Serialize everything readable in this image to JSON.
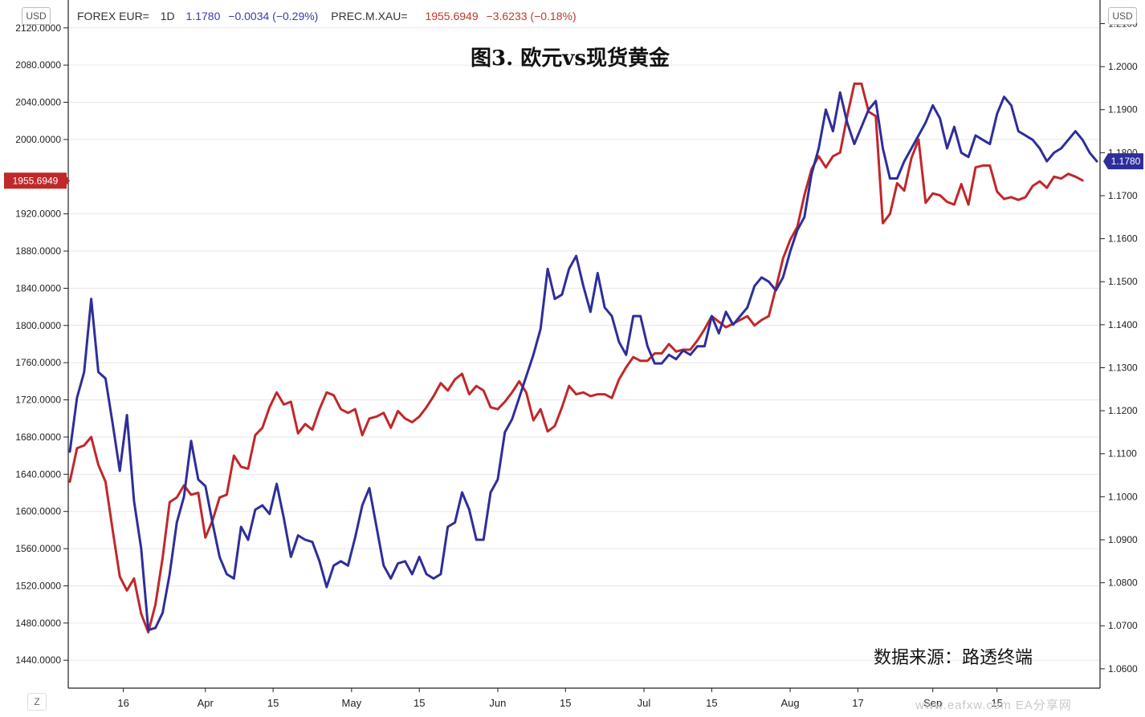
{
  "legend": {
    "symbol1": "FOREX EUR=",
    "interval": "1D",
    "eur_value": "1.1780",
    "eur_change": "−0.0034 (−0.29%)",
    "symbol2": "PREC.M.XAU=",
    "xau_value": "1955.6949",
    "xau_change": "−3.6233 (−0.18%)"
  },
  "title": "图3. 欧元vs现货黄金",
  "source": "数据来源：路透终端",
  "left_currency": "USD",
  "right_currency": "USD",
  "z_label": "Z",
  "watermark": "www.eafxw.com  EA分享网",
  "colors": {
    "eur": "#2e2e9a",
    "xau": "#c0282a",
    "grid": "#e6e6e6",
    "axis": "#222222",
    "tick_text": "#222222"
  },
  "chart_data": {
    "type": "line",
    "x_ticks": [
      "16",
      "Apr",
      "15",
      "May",
      "15",
      "Jun",
      "15",
      "Jul",
      "15",
      "Aug",
      "17",
      "Sep",
      "15"
    ],
    "x_tick_positions": [
      7.5,
      19,
      28.5,
      39.5,
      49,
      60,
      69.5,
      80.5,
      90,
      101,
      110.5,
      121,
      130
    ],
    "y_left": {
      "label": "USD",
      "ticks": [
        "1440.0000",
        "1480.0000",
        "1520.0000",
        "1560.0000",
        "1600.0000",
        "1640.0000",
        "1680.0000",
        "1720.0000",
        "1760.0000",
        "1800.0000",
        "1840.0000",
        "1880.0000",
        "1920.0000",
        "2000.0000",
        "2040.0000",
        "2080.0000",
        "2120.0000"
      ],
      "range": [
        1410,
        2150
      ],
      "last_value_label": "1955.6949",
      "last_value": 1955.6949
    },
    "y_right": {
      "label": "USD",
      "ticks": [
        "1.0600",
        "1.0700",
        "1.0800",
        "1.0900",
        "1.1000",
        "1.1100",
        "1.1200",
        "1.1300",
        "1.1400",
        "1.1500",
        "1.1600",
        "1.1700",
        "1.1800",
        "1.1900",
        "1.2000",
        "1.2100"
      ],
      "range": [
        1.0555,
        1.2155
      ],
      "last_value_label": "1.1780",
      "last_value": 1.178
    },
    "series": [
      {
        "name": "FOREX EUR=",
        "axis": "right",
        "values": [
          1.1105,
          1.123,
          1.129,
          1.146,
          1.129,
          1.1275,
          1.117,
          1.106,
          1.119,
          1.099,
          1.088,
          1.069,
          1.0695,
          1.073,
          1.082,
          1.094,
          1.1,
          1.113,
          1.104,
          1.1025,
          1.094,
          1.086,
          1.082,
          1.081,
          1.093,
          1.09,
          1.097,
          1.098,
          1.096,
          1.103,
          1.095,
          1.086,
          1.091,
          1.09,
          1.0895,
          1.085,
          1.079,
          1.084,
          1.085,
          1.084,
          1.0905,
          1.098,
          1.102,
          1.093,
          1.084,
          1.081,
          1.0845,
          1.085,
          1.082,
          1.086,
          1.082,
          1.081,
          1.082,
          1.093,
          1.094,
          1.101,
          1.097,
          1.09,
          1.09,
          1.101,
          1.104,
          1.115,
          1.118,
          1.123,
          1.128,
          1.133,
          1.139,
          1.153,
          1.146,
          1.147,
          1.153,
          1.156,
          1.149,
          1.143,
          1.152,
          1.144,
          1.142,
          1.136,
          1.133,
          1.142,
          1.142,
          1.135,
          1.131,
          1.131,
          1.133,
          1.132,
          1.134,
          1.133,
          1.135,
          1.135,
          1.142,
          1.138,
          1.143,
          1.14,
          1.142,
          1.144,
          1.149,
          1.151,
          1.15,
          1.148,
          1.151,
          1.157,
          1.162,
          1.165,
          1.175,
          1.181,
          1.19,
          1.185,
          1.194,
          1.187,
          1.182,
          1.186,
          1.19,
          1.192,
          1.181,
          1.174,
          1.174,
          1.178,
          1.181,
          1.184,
          1.187,
          1.191,
          1.188,
          1.181,
          1.186,
          1.18,
          1.179,
          1.184,
          1.183,
          1.182,
          1.189,
          1.193,
          1.191,
          1.185,
          1.184,
          1.183,
          1.181,
          1.178,
          1.18,
          1.181,
          1.183,
          1.185,
          1.183,
          1.18,
          1.178
        ]
      },
      {
        "name": "PREC.M.XAU=",
        "axis": "left",
        "values": [
          1632,
          1668,
          1671,
          1680,
          1650,
          1632,
          1580,
          1530,
          1515,
          1528,
          1490,
          1470,
          1500,
          1550,
          1610,
          1615,
          1628,
          1618,
          1620,
          1572,
          1590,
          1615,
          1618,
          1660,
          1648,
          1646,
          1682,
          1690,
          1712,
          1728,
          1715,
          1718,
          1684,
          1694,
          1688,
          1710,
          1728,
          1725,
          1710,
          1706,
          1710,
          1682,
          1700,
          1702,
          1706,
          1690,
          1708,
          1700,
          1696,
          1702,
          1712,
          1724,
          1738,
          1730,
          1742,
          1748,
          1726,
          1735,
          1730,
          1712,
          1710,
          1718,
          1728,
          1740,
          1728,
          1698,
          1710,
          1686,
          1692,
          1712,
          1735,
          1726,
          1728,
          1724,
          1726,
          1726,
          1722,
          1742,
          1755,
          1766,
          1762,
          1762,
          1770,
          1770,
          1780,
          1772,
          1774,
          1774,
          1784,
          1796,
          1810,
          1804,
          1798,
          1802,
          1806,
          1810,
          1800,
          1806,
          1810,
          1840,
          1872,
          1892,
          1906,
          1940,
          1968,
          1982,
          1970,
          1982,
          1986,
          2025,
          2060,
          2060,
          2030,
          2025,
          1910,
          1920,
          1953,
          1945,
          1980,
          2000,
          1932,
          1942,
          1940,
          1933,
          1930,
          1952,
          1930,
          1970,
          1972,
          1972,
          1944,
          1936,
          1938,
          1935,
          1938,
          1950,
          1955,
          1948,
          1960,
          1958,
          1963,
          1960,
          1956
        ]
      }
    ]
  }
}
